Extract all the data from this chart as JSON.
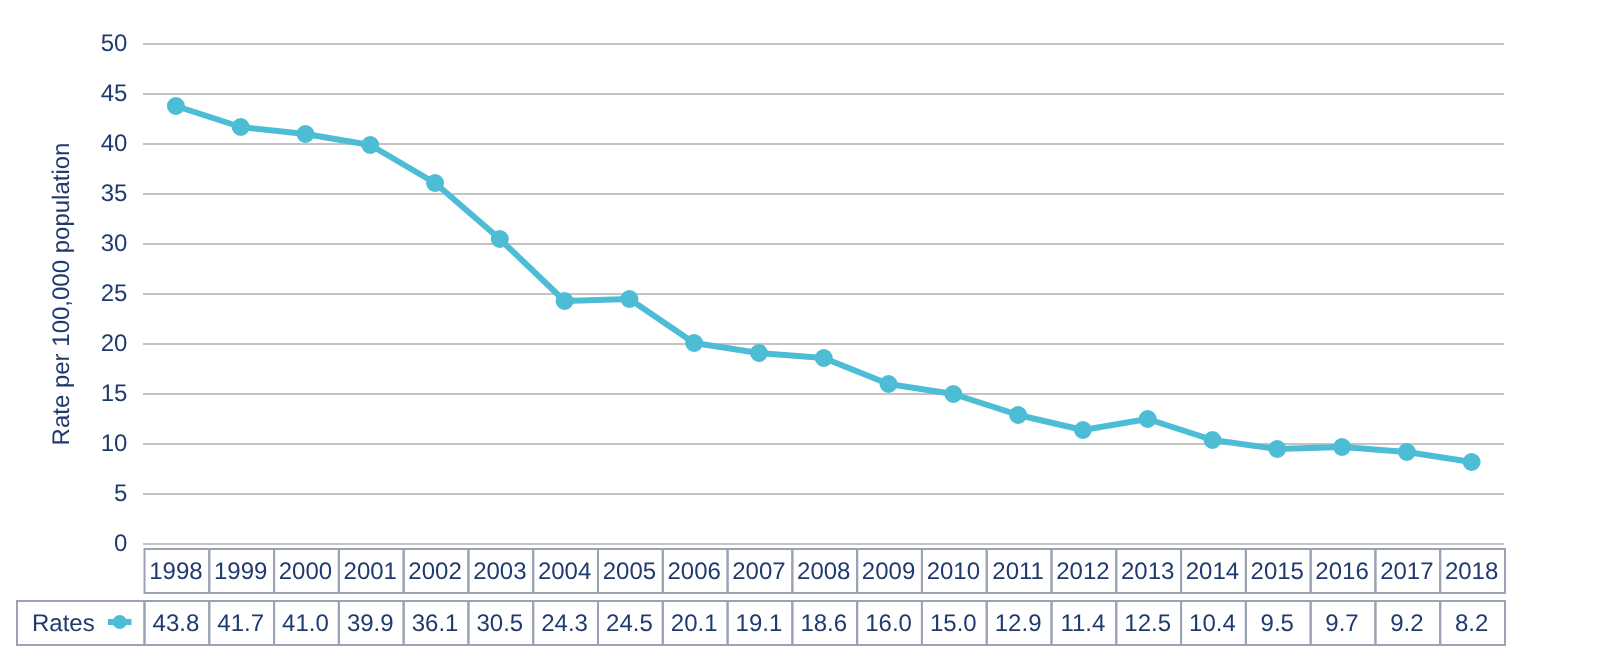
{
  "chart_data": {
    "type": "line",
    "ylabel": "Rate per 100,000 population",
    "categories": [
      "1998",
      "1999",
      "2000",
      "2001",
      "2002",
      "2003",
      "2004",
      "2005",
      "2006",
      "2007",
      "2008",
      "2009",
      "2010",
      "2011",
      "2012",
      "2013",
      "2014",
      "2015",
      "2016",
      "2017",
      "2018"
    ],
    "series": [
      {
        "name": "Rates",
        "color": "#4dbdd5",
        "values": [
          43.8,
          41.7,
          41.0,
          39.9,
          36.1,
          30.5,
          24.3,
          24.5,
          20.1,
          19.1,
          18.6,
          16.0,
          15.0,
          12.9,
          11.4,
          12.5,
          10.4,
          9.5,
          9.7,
          9.2,
          8.2
        ],
        "value_labels": [
          "43.8",
          "41.7",
          "41.0",
          "39.9",
          "36.1",
          "30.5",
          "24.3",
          "24.5",
          "20.1",
          "19.1",
          "18.6",
          "16.0",
          "15.0",
          "12.9",
          "11.4",
          "12.5",
          "10.4",
          "9.5",
          "9.7",
          "9.2",
          "8.2"
        ]
      }
    ],
    "ylim": [
      0,
      50
    ],
    "yticks": [
      0,
      5,
      10,
      15,
      20,
      25,
      30,
      35,
      40,
      45,
      50
    ],
    "grid": "y",
    "legend": "bottom left",
    "marker": "circle",
    "line_style": "solid"
  }
}
